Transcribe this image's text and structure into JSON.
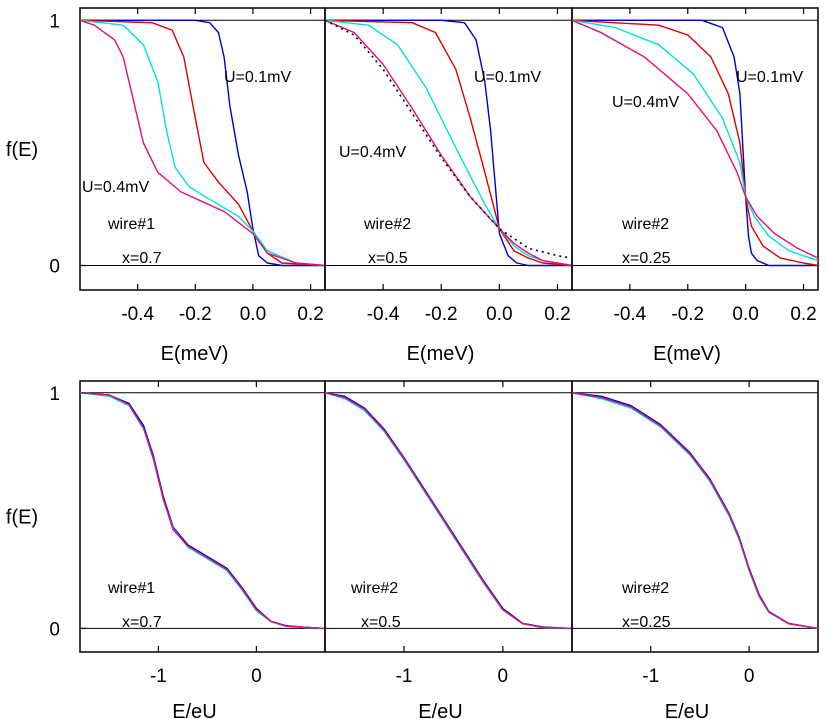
{
  "chart_data": [
    {
      "type": "line",
      "row": "top",
      "panel": 1,
      "xlabel": "E(meV)",
      "ylabel": "f(E)",
      "xlim": [
        -0.6,
        0.25
      ],
      "ylim": [
        -0.1,
        1.05
      ],
      "xticks": [
        -0.4,
        -0.2,
        0.0,
        0.2
      ],
      "xtick_labels": [
        "-0.4",
        "-0.2",
        "0.0",
        "0.2"
      ],
      "yticks": [
        0,
        1
      ],
      "ytick_labels": [
        "0",
        "1"
      ],
      "reference_lines": [
        0,
        1
      ],
      "annotations": [
        "U=0.1mV",
        "U=0.4mV",
        "wire#1",
        "x=0.7"
      ],
      "series": [
        {
          "color": "#0000cc",
          "x": [
            -0.6,
            -0.2,
            -0.15,
            -0.12,
            -0.1,
            -0.08,
            -0.05,
            -0.02,
            0,
            0.02,
            0.05,
            0.1,
            0.25
          ],
          "y": [
            1,
            1,
            0.99,
            0.95,
            0.85,
            0.65,
            0.45,
            0.3,
            0.15,
            0.04,
            0.01,
            0,
            0
          ]
        },
        {
          "color": "#dd0000",
          "x": [
            -0.6,
            -0.35,
            -0.28,
            -0.24,
            -0.2,
            -0.17,
            -0.12,
            -0.05,
            0,
            0.05,
            0.1,
            0.25
          ],
          "y": [
            1,
            0.99,
            0.96,
            0.85,
            0.6,
            0.42,
            0.34,
            0.25,
            0.14,
            0.05,
            0.01,
            0
          ]
        },
        {
          "color": "#00e0e0",
          "x": [
            -0.6,
            -0.45,
            -0.38,
            -0.33,
            -0.3,
            -0.27,
            -0.22,
            -0.15,
            -0.05,
            0,
            0.05,
            0.15,
            0.25
          ],
          "y": [
            1,
            0.98,
            0.9,
            0.75,
            0.55,
            0.4,
            0.32,
            0.27,
            0.2,
            0.14,
            0.06,
            0.01,
            0
          ]
        },
        {
          "color": "#dd1177",
          "x": [
            -0.6,
            -0.55,
            -0.48,
            -0.45,
            -0.42,
            -0.38,
            -0.33,
            -0.25,
            -0.1,
            0,
            0.05,
            0.15,
            0.25
          ],
          "y": [
            1,
            0.98,
            0.92,
            0.85,
            0.7,
            0.5,
            0.38,
            0.3,
            0.22,
            0.13,
            0.05,
            0.01,
            0
          ]
        }
      ]
    },
    {
      "type": "line",
      "row": "top",
      "panel": 2,
      "xlabel": "E(meV)",
      "xlim": [
        -0.6,
        0.25
      ],
      "ylim": [
        -0.1,
        1.05
      ],
      "xticks": [
        -0.4,
        -0.2,
        0.0,
        0.2
      ],
      "xtick_labels": [
        "-0.4",
        "-0.2",
        "0.0",
        "0.2"
      ],
      "reference_lines": [
        0,
        1
      ],
      "annotations": [
        "U=0.1mV",
        "U=0.4mV",
        "wire#2",
        "x=0.5"
      ],
      "series": [
        {
          "color": "#0000cc",
          "x": [
            -0.6,
            -0.2,
            -0.12,
            -0.08,
            -0.05,
            -0.03,
            0,
            0.03,
            0.06,
            0.1,
            0.25
          ],
          "y": [
            1,
            1,
            0.99,
            0.92,
            0.75,
            0.55,
            0.13,
            0.04,
            0.01,
            0,
            0
          ]
        },
        {
          "color": "#dd0000",
          "x": [
            -0.6,
            -0.3,
            -0.22,
            -0.15,
            -0.1,
            -0.05,
            0,
            0.05,
            0.1,
            0.15,
            0.25
          ],
          "y": [
            1,
            0.99,
            0.95,
            0.8,
            0.6,
            0.38,
            0.15,
            0.06,
            0.03,
            0.01,
            0
          ]
        },
        {
          "color": "#00e0e0",
          "x": [
            -0.6,
            -0.45,
            -0.35,
            -0.25,
            -0.15,
            -0.05,
            0,
            0.05,
            0.1,
            0.15,
            0.25
          ],
          "y": [
            1,
            0.98,
            0.9,
            0.72,
            0.48,
            0.25,
            0.15,
            0.08,
            0.04,
            0.02,
            0
          ]
        },
        {
          "color": "#dd1177",
          "x": [
            -0.6,
            -0.5,
            -0.4,
            -0.3,
            -0.2,
            -0.1,
            0,
            0.05,
            0.1,
            0.15,
            0.25
          ],
          "y": [
            1,
            0.95,
            0.82,
            0.64,
            0.45,
            0.28,
            0.15,
            0.09,
            0.05,
            0.02,
            0
          ]
        },
        {
          "color": "#000000",
          "style": "dotted",
          "x": [
            -0.6,
            -0.5,
            -0.4,
            -0.3,
            -0.2,
            -0.1,
            0,
            0.1,
            0.2,
            0.25
          ],
          "y": [
            1,
            0.94,
            0.8,
            0.62,
            0.44,
            0.28,
            0.15,
            0.07,
            0.04,
            0.03
          ]
        }
      ]
    },
    {
      "type": "line",
      "row": "top",
      "panel": 3,
      "xlabel": "E(meV)",
      "xlim": [
        -0.6,
        0.25
      ],
      "ylim": [
        -0.1,
        1.05
      ],
      "xticks": [
        -0.4,
        -0.2,
        0.0,
        0.2
      ],
      "xtick_labels": [
        "-0.4",
        "-0.2",
        "0.0",
        "0.2"
      ],
      "reference_lines": [
        0,
        1
      ],
      "annotations": [
        "U=0.1mV",
        "U=0.4mV",
        "wire#2",
        "x=0.25"
      ],
      "series": [
        {
          "color": "#0000cc",
          "x": [
            -0.6,
            -0.15,
            -0.08,
            -0.04,
            -0.02,
            0,
            0.01,
            0.02,
            0.04,
            0.08,
            0.25
          ],
          "y": [
            1,
            1,
            0.97,
            0.85,
            0.7,
            0.28,
            0.12,
            0.05,
            0.02,
            0,
            0
          ]
        },
        {
          "color": "#dd0000",
          "x": [
            -0.6,
            -0.3,
            -0.2,
            -0.12,
            -0.06,
            -0.02,
            0,
            0.02,
            0.06,
            0.12,
            0.2,
            0.25
          ],
          "y": [
            1,
            0.98,
            0.94,
            0.85,
            0.7,
            0.5,
            0.28,
            0.16,
            0.08,
            0.03,
            0.01,
            0
          ]
        },
        {
          "color": "#00e0e0",
          "x": [
            -0.6,
            -0.45,
            -0.3,
            -0.18,
            -0.08,
            -0.02,
            0,
            0.03,
            0.08,
            0.15,
            0.25
          ],
          "y": [
            1,
            0.97,
            0.9,
            0.78,
            0.6,
            0.42,
            0.28,
            0.2,
            0.12,
            0.06,
            0.02
          ]
        },
        {
          "color": "#dd1177",
          "x": [
            -0.6,
            -0.5,
            -0.35,
            -0.2,
            -0.1,
            -0.03,
            0,
            0.04,
            0.1,
            0.18,
            0.25
          ],
          "y": [
            1,
            0.95,
            0.85,
            0.7,
            0.55,
            0.38,
            0.28,
            0.2,
            0.13,
            0.07,
            0.03
          ]
        }
      ]
    },
    {
      "type": "line",
      "row": "bottom",
      "panel": 1,
      "xlabel": "E/eU",
      "ylabel": "f(E)",
      "xlim": [
        -1.8,
        0.7
      ],
      "ylim": [
        -0.1,
        1.05
      ],
      "xticks": [
        -1,
        0
      ],
      "xtick_labels": [
        "-1",
        "0"
      ],
      "yticks": [
        0,
        1
      ],
      "ytick_labels": [
        "0",
        "1"
      ],
      "reference_lines": [
        0,
        1
      ],
      "annotations": [
        "wire#1",
        "x=0.7"
      ],
      "series": [
        {
          "color": "#dd0000",
          "x": [
            -1.8,
            -1.5,
            -1.3,
            -1.15,
            -1.05,
            -0.95,
            -0.85,
            -0.7,
            -0.5,
            -0.3,
            -0.15,
            0,
            0.15,
            0.3,
            0.5,
            0.7
          ],
          "y": [
            1,
            0.99,
            0.95,
            0.85,
            0.72,
            0.55,
            0.42,
            0.35,
            0.3,
            0.25,
            0.17,
            0.08,
            0.03,
            0.01,
            0.005,
            0
          ]
        },
        {
          "color": "#0000cc",
          "x": [
            -1.8,
            -1.5,
            -1.3,
            -1.15,
            -1.05,
            -0.95,
            -0.85,
            -0.7,
            -0.5,
            -0.3,
            -0.15,
            0,
            0.15,
            0.3,
            0.5,
            0.7
          ],
          "y": [
            1,
            0.99,
            0.955,
            0.86,
            0.73,
            0.56,
            0.43,
            0.355,
            0.305,
            0.255,
            0.175,
            0.085,
            0.03,
            0.012,
            0.005,
            0
          ]
        },
        {
          "color": "#00e0e0",
          "x": [
            -1.8,
            -1.5,
            -1.3,
            -1.15,
            -1.05,
            -0.95,
            -0.85,
            -0.7,
            -0.5,
            -0.3,
            -0.15,
            0,
            0.15,
            0.3,
            0.5,
            0.7
          ],
          "y": [
            1,
            0.985,
            0.945,
            0.845,
            0.715,
            0.545,
            0.425,
            0.345,
            0.295,
            0.245,
            0.165,
            0.075,
            0.028,
            0.01,
            0.004,
            0
          ]
        },
        {
          "color": "#dd1177",
          "x": [
            -1.8,
            -1.5,
            -1.3,
            -1.15,
            -1.05,
            -0.95,
            -0.85,
            -0.7,
            -0.5,
            -0.3,
            -0.15,
            0,
            0.15,
            0.3,
            0.5,
            0.7
          ],
          "y": [
            1,
            0.99,
            0.95,
            0.85,
            0.72,
            0.55,
            0.42,
            0.35,
            0.3,
            0.25,
            0.17,
            0.08,
            0.03,
            0.01,
            0.005,
            0
          ]
        }
      ]
    },
    {
      "type": "line",
      "row": "bottom",
      "panel": 2,
      "xlabel": "E/eU",
      "xlim": [
        -1.8,
        0.7
      ],
      "ylim": [
        -0.1,
        1.05
      ],
      "xticks": [
        -1,
        0
      ],
      "xtick_labels": [
        "-1",
        "0"
      ],
      "reference_lines": [
        0,
        1
      ],
      "annotations": [
        "wire#2",
        "x=0.5"
      ],
      "series": [
        {
          "color": "#dd0000",
          "x": [
            -1.8,
            -1.6,
            -1.4,
            -1.2,
            -1,
            -0.8,
            -0.6,
            -0.4,
            -0.2,
            0,
            0.2,
            0.4,
            0.7
          ],
          "y": [
            1,
            0.98,
            0.93,
            0.84,
            0.72,
            0.59,
            0.46,
            0.33,
            0.2,
            0.08,
            0.02,
            0.005,
            0
          ]
        },
        {
          "color": "#0000cc",
          "x": [
            -1.8,
            -1.6,
            -1.4,
            -1.2,
            -1,
            -0.8,
            -0.6,
            -0.4,
            -0.2,
            0,
            0.2,
            0.4,
            0.7
          ],
          "y": [
            1,
            0.985,
            0.935,
            0.845,
            0.725,
            0.595,
            0.465,
            0.335,
            0.205,
            0.085,
            0.022,
            0.006,
            0
          ]
        },
        {
          "color": "#00e0e0",
          "x": [
            -1.8,
            -1.6,
            -1.4,
            -1.2,
            -1,
            -0.8,
            -0.6,
            -0.4,
            -0.2,
            0,
            0.2,
            0.4,
            0.7
          ],
          "y": [
            1,
            0.975,
            0.925,
            0.835,
            0.715,
            0.585,
            0.455,
            0.325,
            0.195,
            0.078,
            0.02,
            0.004,
            0
          ]
        },
        {
          "color": "#dd1177",
          "x": [
            -1.8,
            -1.6,
            -1.4,
            -1.2,
            -1,
            -0.8,
            -0.6,
            -0.4,
            -0.2,
            0,
            0.2,
            0.4,
            0.7
          ],
          "y": [
            1,
            0.98,
            0.93,
            0.84,
            0.72,
            0.59,
            0.46,
            0.33,
            0.2,
            0.08,
            0.02,
            0.005,
            0
          ]
        }
      ]
    },
    {
      "type": "line",
      "row": "bottom",
      "panel": 3,
      "xlabel": "E/eU",
      "xlim": [
        -1.8,
        0.7
      ],
      "ylim": [
        -0.1,
        1.05
      ],
      "xticks": [
        -1,
        0
      ],
      "xtick_labels": [
        "-1",
        "0"
      ],
      "reference_lines": [
        0,
        1
      ],
      "annotations": [
        "wire#2",
        "x=0.25"
      ],
      "series": [
        {
          "color": "#dd0000",
          "x": [
            -1.8,
            -1.5,
            -1.2,
            -0.9,
            -0.6,
            -0.4,
            -0.2,
            -0.1,
            0,
            0.1,
            0.2,
            0.4,
            0.7
          ],
          "y": [
            1,
            0.98,
            0.94,
            0.86,
            0.74,
            0.63,
            0.48,
            0.38,
            0.25,
            0.14,
            0.07,
            0.02,
            0
          ]
        },
        {
          "color": "#0000cc",
          "x": [
            -1.8,
            -1.5,
            -1.2,
            -0.9,
            -0.6,
            -0.4,
            -0.2,
            -0.1,
            0,
            0.1,
            0.2,
            0.4,
            0.7
          ],
          "y": [
            1,
            0.985,
            0.945,
            0.865,
            0.745,
            0.635,
            0.485,
            0.385,
            0.255,
            0.145,
            0.072,
            0.022,
            0
          ]
        },
        {
          "color": "#00e0e0",
          "x": [
            -1.8,
            -1.5,
            -1.2,
            -0.9,
            -0.6,
            -0.4,
            -0.2,
            -0.1,
            0,
            0.1,
            0.2,
            0.4,
            0.7
          ],
          "y": [
            1,
            0.975,
            0.935,
            0.855,
            0.735,
            0.625,
            0.475,
            0.375,
            0.245,
            0.135,
            0.068,
            0.02,
            0
          ]
        },
        {
          "color": "#dd1177",
          "x": [
            -1.8,
            -1.5,
            -1.2,
            -0.9,
            -0.6,
            -0.4,
            -0.2,
            -0.1,
            0,
            0.1,
            0.2,
            0.4,
            0.7
          ],
          "y": [
            1,
            0.98,
            0.94,
            0.86,
            0.74,
            0.63,
            0.48,
            0.38,
            0.25,
            0.14,
            0.07,
            0.02,
            0
          ]
        }
      ]
    }
  ]
}
